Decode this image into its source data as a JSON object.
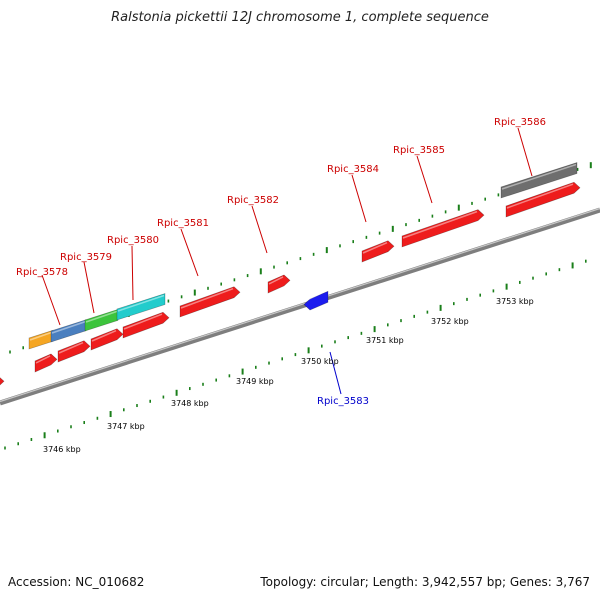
{
  "title": "Ralstonia pickettii 12J chromosome 1, complete sequence",
  "footer": {
    "accession": "Accession: NC_010682",
    "topology": "Topology: circular; Length: 3,942,557 bp; Genes: 3,767"
  },
  "colors": {
    "backbone": "#8a8a8a",
    "tick": "#1a7f1a",
    "forward_label": "#cc0000",
    "reverse_label": "#0000cc",
    "gene_red": "#ee1c1c",
    "gene_blue": "#1c1cee",
    "gene_orange": "#f5a623",
    "gene_steelblue": "#4a7fbf",
    "gene_green": "#3cc43c",
    "gene_cyan": "#22cccc",
    "gene_gray": "#6e6e6e"
  },
  "kbp_labels": [
    "3746 kbp",
    "3747 kbp",
    "3748 kbp",
    "3749 kbp",
    "3750 kbp",
    "3751 kbp",
    "3752 kbp",
    "3753 kbp"
  ],
  "gene_labels": [
    {
      "text": "Rpic_3578",
      "strand": "forward"
    },
    {
      "text": "Rpic_3579",
      "strand": "forward"
    },
    {
      "text": "Rpic_3580",
      "strand": "forward"
    },
    {
      "text": "Rpic_3581",
      "strand": "forward"
    },
    {
      "text": "Rpic_3582",
      "strand": "forward"
    },
    {
      "text": "Rpic_3583",
      "strand": "reverse"
    },
    {
      "text": "Rpic_3584",
      "strand": "forward"
    },
    {
      "text": "Rpic_3585",
      "strand": "forward"
    },
    {
      "text": "Rpic_3586",
      "strand": "forward"
    }
  ],
  "genes": [
    {
      "color": "gene_red"
    },
    {
      "color": "gene_red"
    },
    {
      "color": "gene_red"
    },
    {
      "color": "gene_red"
    },
    {
      "color": "gene_red"
    },
    {
      "color": "gene_red"
    },
    {
      "color": "gene_red"
    },
    {
      "color": "gene_red"
    },
    {
      "color": "gene_red"
    },
    {
      "color": "gene_red"
    },
    {
      "color": "gene_orange"
    },
    {
      "color": "gene_steelblue"
    },
    {
      "color": "gene_green"
    },
    {
      "color": "gene_cyan"
    },
    {
      "color": "gene_blue"
    },
    {
      "color": "gene_gray"
    }
  ]
}
